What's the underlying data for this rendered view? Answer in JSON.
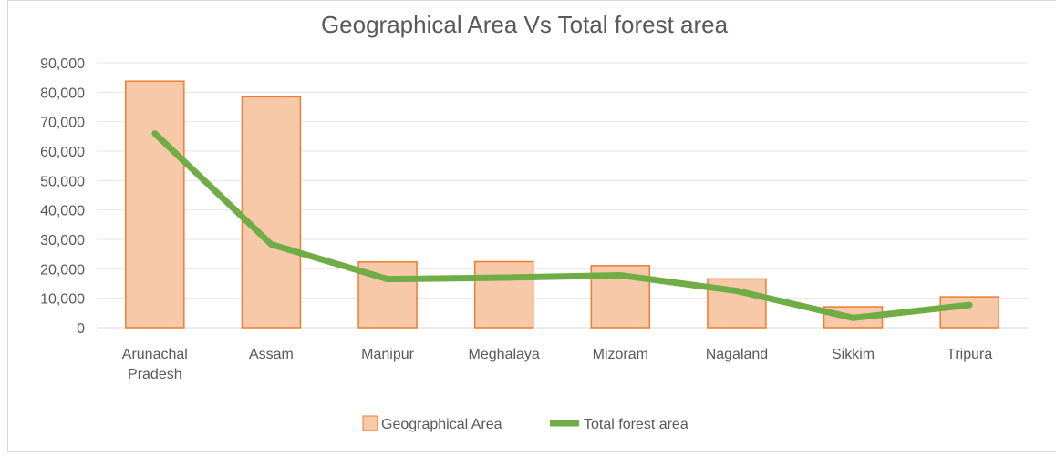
{
  "chart_data": {
    "type": "bar",
    "title": "Geographical Area Vs Total forest area",
    "categories": [
      [
        "Arunachal",
        "Pradesh"
      ],
      [
        "Assam"
      ],
      [
        "Manipur"
      ],
      [
        "Meghalaya"
      ],
      [
        "Mizoram"
      ],
      [
        "Nagaland"
      ],
      [
        "Sikkim"
      ],
      [
        "Tripura"
      ]
    ],
    "series": [
      {
        "name": "Geographical Area",
        "type": "bar",
        "color": "#f8c9a8",
        "border_color": "#ed7d31",
        "values": [
          83743,
          78438,
          22327,
          22429,
          21081,
          16579,
          7096,
          10486
        ]
      },
      {
        "name": "Total forest area",
        "type": "line",
        "color": "#70ad47",
        "values": [
          66000,
          28300,
          16500,
          17000,
          17800,
          12500,
          3300,
          7700
        ]
      }
    ],
    "ylim": [
      0,
      90000
    ],
    "yticks": [
      "90,000",
      "80,000",
      "70,000",
      "60,000",
      "50,000",
      "40,000",
      "30,000",
      "20,000",
      "10,000",
      "0"
    ],
    "ytick_values": [
      90000,
      80000,
      70000,
      60000,
      50000,
      40000,
      30000,
      20000,
      10000,
      0
    ],
    "grid": true,
    "legend_position": "bottom",
    "xlabel": "",
    "ylabel": ""
  }
}
